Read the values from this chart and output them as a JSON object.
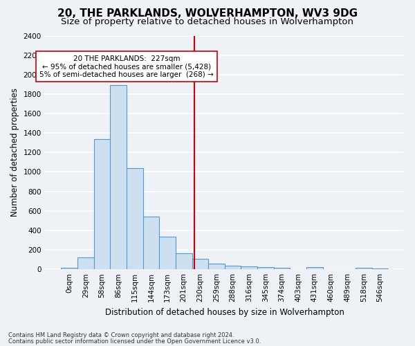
{
  "title": "20, THE PARKLANDS, WOLVERHAMPTON, WV3 9DG",
  "subtitle": "Size of property relative to detached houses in Wolverhampton",
  "xlabel": "Distribution of detached houses by size in Wolverhampton",
  "ylabel": "Number of detached properties",
  "bar_values": [
    15,
    125,
    1340,
    1890,
    1040,
    540,
    335,
    165,
    105,
    60,
    38,
    28,
    25,
    15,
    0,
    25,
    0,
    0,
    15,
    10
  ],
  "bar_labels": [
    "0sqm",
    "29sqm",
    "58sqm",
    "86sqm",
    "115sqm",
    "144sqm",
    "173sqm",
    "201sqm",
    "230sqm",
    "259sqm",
    "288sqm",
    "316sqm",
    "345sqm",
    "374sqm",
    "403sqm",
    "431sqm",
    "460sqm",
    "489sqm",
    "518sqm",
    "546sqm"
  ],
  "bar_color": "#cce0f0",
  "bar_edge_color": "#5599cc",
  "ylim": [
    0,
    2400
  ],
  "yticks": [
    0,
    200,
    400,
    600,
    800,
    1000,
    1200,
    1400,
    1600,
    1800,
    2000,
    2200,
    2400
  ],
  "vline_x": 7.65,
  "vline_color": "#cc0000",
  "annotation_text": "20 THE PARKLANDS:  227sqm\n← 95% of detached houses are smaller (5,428)\n5% of semi-detached houses are larger  (268) →",
  "annotation_box_color": "#ffffff",
  "annotation_box_edgecolor": "#cc0000",
  "footer_line1": "Contains HM Land Registry data © Crown copyright and database right 2024.",
  "footer_line2": "Contains public sector information licensed under the Open Government Licence v3.0.",
  "background_color": "#eef2f7",
  "grid_color": "#ffffff",
  "title_fontsize": 11,
  "subtitle_fontsize": 9.5,
  "axis_fontsize": 8.5,
  "tick_fontsize": 7.5,
  "footer_fontsize": 6
}
